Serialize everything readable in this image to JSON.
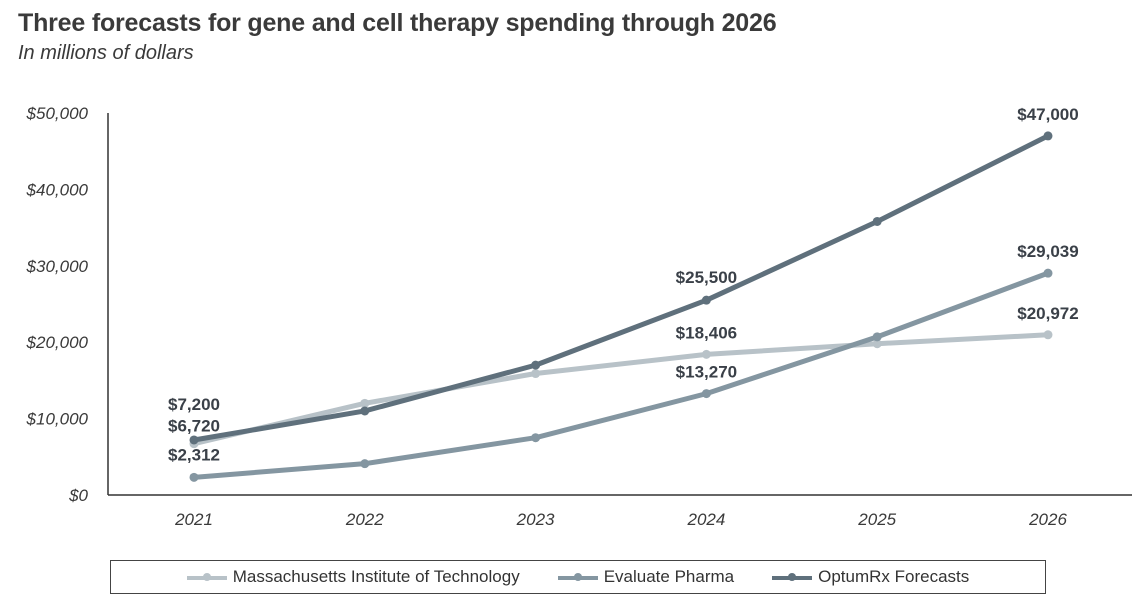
{
  "chart_data": {
    "type": "line",
    "title": "Three forecasts for gene and cell therapy spending through 2026",
    "subtitle": "In millions of dollars",
    "xlabel": "",
    "ylabel": "",
    "categories": [
      "2021",
      "2022",
      "2023",
      "2024",
      "2025",
      "2026"
    ],
    "ylim": [
      0,
      50000
    ],
    "yticks": [
      0,
      10000,
      20000,
      30000,
      40000,
      50000
    ],
    "ytick_labels": [
      "$0",
      "$10,000",
      "$20,000",
      "$30,000",
      "$40,000",
      "$50,000"
    ],
    "grid": false,
    "legend_position": "bottom",
    "series": [
      {
        "name": "Massachusetts Institute of Technology",
        "color": "#b8c2c8",
        "values": [
          6720,
          12000,
          15900,
          18406,
          19800,
          20972
        ],
        "labels": [
          "$6,720",
          "",
          "",
          "$18,406",
          "",
          "$20,972"
        ]
      },
      {
        "name": "Evaluate Pharma",
        "color": "#8496a1",
        "values": [
          2312,
          4100,
          7500,
          13270,
          20700,
          29039
        ],
        "labels": [
          "$2,312",
          "",
          "",
          "$13,270",
          "",
          "$29,039"
        ]
      },
      {
        "name": "OptumRx Forecasts",
        "color": "#5f707c",
        "values": [
          7200,
          11000,
          17000,
          25500,
          35800,
          47000
        ],
        "labels": [
          "$7,200",
          "",
          "",
          "$25,500",
          "",
          "$47,000"
        ]
      }
    ]
  }
}
